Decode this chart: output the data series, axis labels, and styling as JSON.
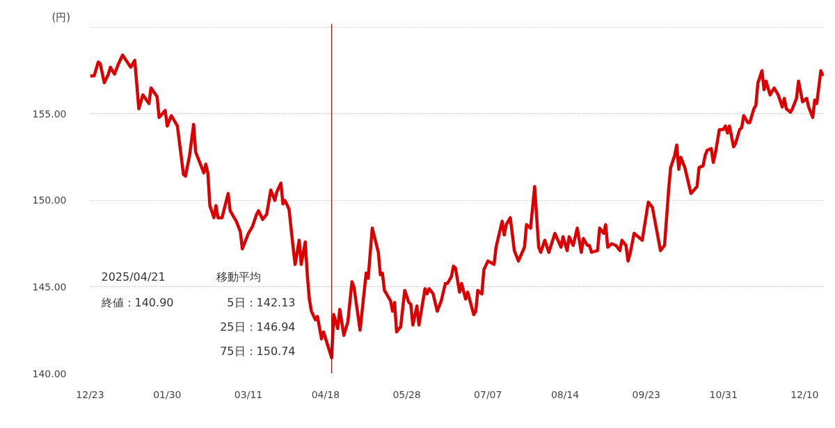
{
  "chart_data": {
    "type": "line",
    "ylabel": "(円)",
    "x": [
      "2024-12-23",
      "2024-12-25",
      "2024-12-27",
      "2024-12-28",
      "2024-12-30",
      "2025-01-01",
      "2025-01-02",
      "2025-01-04",
      "2025-01-06",
      "2025-01-08",
      "2025-01-12",
      "2025-01-14",
      "2025-01-16",
      "2025-01-18",
      "2025-01-21",
      "2025-01-22",
      "2025-01-25",
      "2025-01-26",
      "2025-01-29",
      "2025-01-30",
      "2025-02-01",
      "2025-02-04",
      "2025-02-07",
      "2025-02-08",
      "2025-02-10",
      "2025-02-12",
      "2025-02-13",
      "2025-02-17",
      "2025-02-18",
      "2025-02-19",
      "2025-02-20",
      "2025-02-22",
      "2025-02-23",
      "2025-02-24",
      "2025-02-26",
      "2025-03-01",
      "2025-03-02",
      "2025-03-05",
      "2025-03-07",
      "2025-03-08",
      "2025-03-11",
      "2025-03-13",
      "2025-03-15",
      "2025-03-16",
      "2025-03-18",
      "2025-03-20",
      "2025-03-22",
      "2025-03-24",
      "2025-03-25",
      "2025-03-27",
      "2025-03-28",
      "2025-03-29",
      "2025-03-31",
      "2025-04-02",
      "2025-04-03",
      "2025-04-05",
      "2025-04-06",
      "2025-04-08",
      "2025-04-09",
      "2025-04-10",
      "2025-04-11",
      "2025-04-13",
      "2025-04-14",
      "2025-04-16",
      "2025-04-17",
      "2025-04-21",
      "2025-04-22",
      "2025-04-24",
      "2025-04-25",
      "2025-04-27",
      "2025-04-29",
      "2025-05-01",
      "2025-05-02",
      "2025-05-05",
      "2025-05-08",
      "2025-05-09",
      "2025-05-11",
      "2025-05-14",
      "2025-05-15",
      "2025-05-16",
      "2025-05-17",
      "2025-05-20",
      "2025-05-21",
      "2025-05-22",
      "2025-05-23",
      "2025-05-25",
      "2025-05-27",
      "2025-05-29",
      "2025-05-30",
      "2025-05-31",
      "2025-06-02",
      "2025-06-03",
      "2025-06-06",
      "2025-06-07",
      "2025-06-08",
      "2025-06-10",
      "2025-06-12",
      "2025-06-14",
      "2025-06-16",
      "2025-06-17",
      "2025-06-19",
      "2025-06-20",
      "2025-06-21",
      "2025-06-23",
      "2025-06-24",
      "2025-06-26",
      "2025-06-27",
      "2025-06-30",
      "2025-07-01",
      "2025-07-02",
      "2025-07-04",
      "2025-07-05",
      "2025-07-07",
      "2025-07-10",
      "2025-07-11",
      "2025-07-12",
      "2025-07-14",
      "2025-07-15",
      "2025-07-16",
      "2025-07-18",
      "2025-07-20",
      "2025-07-22",
      "2025-07-25",
      "2025-07-26",
      "2025-07-28",
      "2025-07-30",
      "2025-08-01",
      "2025-08-02",
      "2025-08-04",
      "2025-08-06",
      "2025-08-09",
      "2025-08-12",
      "2025-08-13",
      "2025-08-15",
      "2025-08-16",
      "2025-08-18",
      "2025-08-20",
      "2025-08-22",
      "2025-08-23",
      "2025-08-25",
      "2025-08-26",
      "2025-08-27",
      "2025-08-30",
      "2025-08-31",
      "2025-09-02",
      "2025-09-03",
      "2025-09-04",
      "2025-09-06",
      "2025-09-08",
      "2025-09-10",
      "2025-09-11",
      "2025-09-13",
      "2025-09-14",
      "2025-09-15",
      "2025-09-17",
      "2025-09-21",
      "2025-09-24",
      "2025-09-26",
      "2025-09-30",
      "2025-10-02",
      "2025-10-04",
      "2025-10-05",
      "2025-10-07",
      "2025-10-08",
      "2025-10-09",
      "2025-10-10",
      "2025-10-12",
      "2025-10-15",
      "2025-10-18",
      "2025-10-19",
      "2025-10-21",
      "2025-10-22",
      "2025-10-23",
      "2025-10-25",
      "2025-10-26",
      "2025-10-27",
      "2025-10-29",
      "2025-10-31",
      "2025-11-01",
      "2025-11-02",
      "2025-11-03",
      "2025-11-05",
      "2025-11-06",
      "2025-11-08",
      "2025-11-09",
      "2025-11-10",
      "2025-11-12",
      "2025-11-13",
      "2025-11-15",
      "2025-11-16",
      "2025-11-17",
      "2025-11-19",
      "2025-11-20",
      "2025-11-21",
      "2025-11-23",
      "2025-11-25",
      "2025-11-26",
      "2025-11-27",
      "2025-11-29",
      "2025-11-30",
      "2025-12-01",
      "2025-12-03",
      "2025-12-04",
      "2025-12-06",
      "2025-12-07",
      "2025-12-08",
      "2025-12-09",
      "2025-12-11",
      "2025-12-12",
      "2025-12-14",
      "2025-12-15",
      "2025-12-16",
      "2025-12-18",
      "2025-12-19"
    ],
    "series": [
      {
        "color": "#dd0000",
        "values": [
          157.2,
          157.2,
          158.0,
          157.9,
          156.8,
          157.3,
          157.7,
          157.3,
          157.9,
          158.4,
          157.7,
          158.1,
          155.3,
          156.1,
          155.6,
          156.5,
          156.0,
          154.8,
          155.2,
          154.3,
          154.9,
          154.3,
          151.5,
          151.4,
          152.6,
          154.4,
          152.8,
          151.6,
          152.1,
          151.6,
          149.7,
          149.0,
          149.7,
          149.0,
          149.0,
          150.4,
          149.4,
          148.8,
          148.2,
          147.2,
          148.1,
          148.5,
          149.2,
          149.4,
          148.9,
          149.2,
          150.6,
          150.0,
          150.5,
          151.0,
          149.8,
          150.0,
          149.5,
          147.3,
          146.3,
          147.7,
          146.3,
          147.6,
          145.7,
          144.3,
          143.6,
          143.1,
          143.3,
          142.0,
          142.4,
          140.9,
          143.4,
          142.6,
          143.7,
          142.2,
          143.0,
          145.3,
          145.0,
          142.5,
          145.8,
          145.5,
          148.4,
          147.0,
          145.7,
          145.8,
          144.8,
          144.2,
          143.6,
          144.1,
          142.4,
          142.7,
          144.8,
          144.1,
          144.0,
          142.8,
          143.9,
          142.8,
          144.9,
          144.6,
          144.9,
          144.6,
          143.6,
          144.2,
          145.2,
          145.2,
          145.6,
          146.2,
          146.1,
          144.7,
          145.2,
          144.3,
          144.7,
          143.4,
          143.6,
          144.8,
          144.6,
          146.0,
          146.5,
          146.3,
          147.3,
          147.8,
          148.8,
          148.0,
          148.6,
          149.0,
          147.1,
          146.5,
          147.3,
          148.6,
          148.4,
          150.8,
          147.3,
          147.0,
          147.7,
          147.0,
          148.1,
          147.3,
          147.9,
          147.1,
          147.9,
          147.4,
          148.4,
          147.0,
          147.8,
          147.4,
          147.4,
          147.0,
          147.1,
          148.4,
          148.1,
          148.6,
          147.3,
          147.5,
          147.4,
          147.1,
          147.7,
          147.4,
          146.5,
          146.9,
          148.1,
          147.7,
          149.9,
          149.6,
          147.1,
          147.4,
          150.6,
          151.9,
          152.6,
          153.2,
          151.8,
          152.5,
          151.9,
          150.4,
          150.8,
          151.9,
          152.0,
          152.6,
          152.9,
          153.0,
          152.2,
          152.7,
          154.1,
          154.1,
          154.3,
          153.9,
          154.3,
          153.1,
          153.3,
          154.1,
          154.2,
          154.9,
          154.5,
          154.5,
          155.3,
          155.5,
          156.8,
          157.5,
          156.4,
          156.9,
          156.1,
          156.5,
          156.3,
          156.1,
          155.4,
          155.9,
          155.3,
          155.1,
          155.3,
          155.9,
          156.9,
          156.3,
          155.7,
          155.9,
          155.4,
          154.8,
          155.8,
          155.6,
          157.5,
          157.2
        ]
      }
    ],
    "xlim": [
      "2024-12-23",
      "2025-12-20"
    ],
    "xticks": [
      {
        "value": "2024-12-23",
        "label": "12/23"
      },
      {
        "value": "2025-01-30",
        "label": "01/30"
      },
      {
        "value": "2025-03-11",
        "label": "03/11"
      },
      {
        "value": "2025-04-18",
        "label": "04/18"
      },
      {
        "value": "2025-05-28",
        "label": "05/28"
      },
      {
        "value": "2025-07-07",
        "label": "07/07"
      },
      {
        "value": "2025-08-14",
        "label": "08/14"
      },
      {
        "value": "2025-09-23",
        "label": "09/23"
      },
      {
        "value": "2025-10-31",
        "label": "10/31"
      },
      {
        "value": "2025-12-10",
        "label": "12/10"
      }
    ],
    "ylim": [
      140,
      160.2
    ],
    "yticks": [
      {
        "value": 140,
        "label": "140.00"
      },
      {
        "value": 145,
        "label": "145.00"
      },
      {
        "value": 150,
        "label": "150.00"
      },
      {
        "value": 155,
        "label": "155.00"
      },
      {
        "value": 160,
        "label": null
      }
    ],
    "grid": "y",
    "line_style": "solid",
    "ref_lines": [
      {
        "axis": "x",
        "value": "2025-04-21",
        "color": "#b00000"
      }
    ],
    "annotations": [
      "2025/04/21",
      "終値：140.90",
      "移動平均",
      "5日：142.13",
      "25日：146.94",
      "75日：150.74"
    ]
  }
}
